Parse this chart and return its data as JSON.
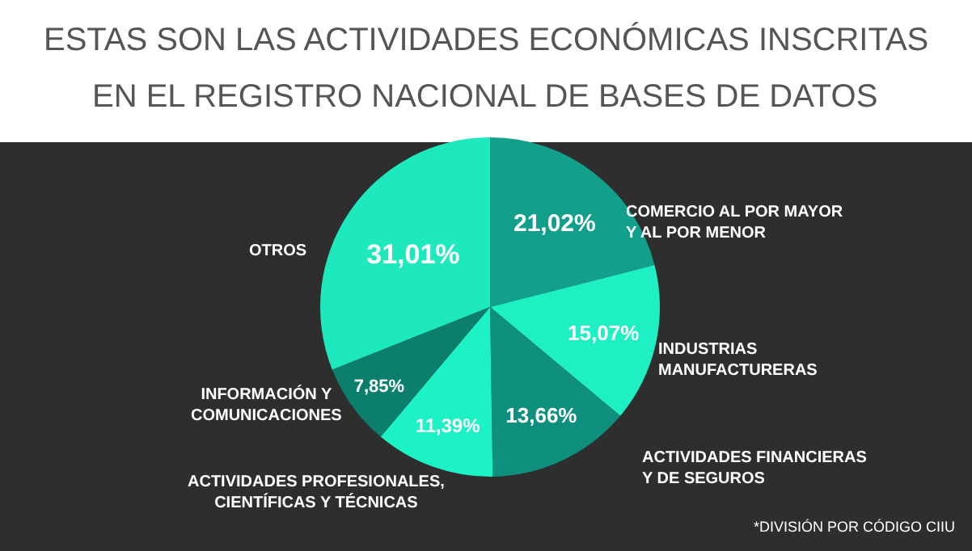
{
  "chart_data": {
    "type": "pie",
    "title": "ESTAS SON LAS ACTIVIDADES ECONÓMICAS INSCRITAS",
    "subtitle": "EN EL REGISTRO NACIONAL DE BASES DE DATOS",
    "categories": [
      "COMERCIO AL POR MAYOR\nY AL POR MENOR",
      "INDUSTRIAS\nMANUFACTURERAS",
      "ACTIVIDADES FINANCIERAS\nY DE SEGUROS",
      "ACTIVIDADES PROFESIONALES,\nCIENTÍFICAS Y TÉCNICAS",
      "INFORMACIÓN Y\nCOMUNICACIONES",
      "OTROS"
    ],
    "values": [
      21.02,
      15.07,
      13.66,
      11.39,
      7.85,
      31.01
    ],
    "value_labels": [
      "21,02%",
      "15,07%",
      "13,66%",
      "11,39%",
      "7,85%",
      "31,01%"
    ],
    "colors": [
      "#12a08c",
      "#1ff0c4",
      "#0f907e",
      "#1cf2c6",
      "#0b7f6c",
      "#1de9bd"
    ],
    "annotations": [
      "*DIVISIÓN POR CÓDIGO CIIU"
    ],
    "legend": false
  }
}
